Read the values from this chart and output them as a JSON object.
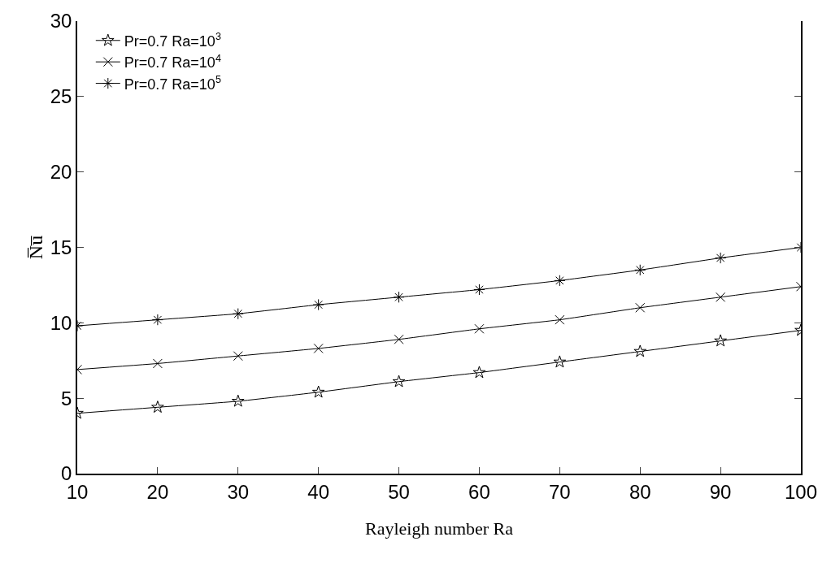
{
  "chart_data": {
    "type": "line",
    "xlabel": "Rayleigh number Ra",
    "ylabel": "N̅u̅",
    "x": [
      10,
      20,
      30,
      40,
      50,
      60,
      70,
      80,
      90,
      100
    ],
    "series": [
      {
        "name": "Pr=0.7 Ra=10$^{3}$",
        "color": "#000000",
        "marker": "star",
        "values": [
          4.0,
          4.4,
          4.8,
          5.4,
          6.1,
          6.7,
          7.4,
          8.1,
          8.8,
          9.5
        ]
      },
      {
        "name": "Pr=0.7 Ra=10$^{4}$",
        "color": "#000000",
        "marker": "cross",
        "values": [
          6.9,
          7.3,
          7.8,
          8.3,
          8.9,
          9.6,
          10.2,
          11.0,
          11.7,
          12.4
        ]
      },
      {
        "name": "Pr=0.7 Ra=10$^{5}$",
        "color": "#000000",
        "marker": "cross",
        "values": [
          9.8,
          10.2,
          10.6,
          11.2,
          11.7,
          12.2,
          12.8,
          13.5,
          14.3,
          15.0
        ]
      }
    ],
    "xlim": [
      10,
      100
    ],
    "xticks": [
      10,
      20,
      30,
      40,
      50,
      60,
      70,
      80,
      90,
      100
    ],
    "ylim": [
      0,
      30
    ],
    "yticks": [
      0,
      5,
      10,
      15,
      20,
      25,
      30
    ],
    "legend": "top left",
    "line_style": "solid"
  }
}
